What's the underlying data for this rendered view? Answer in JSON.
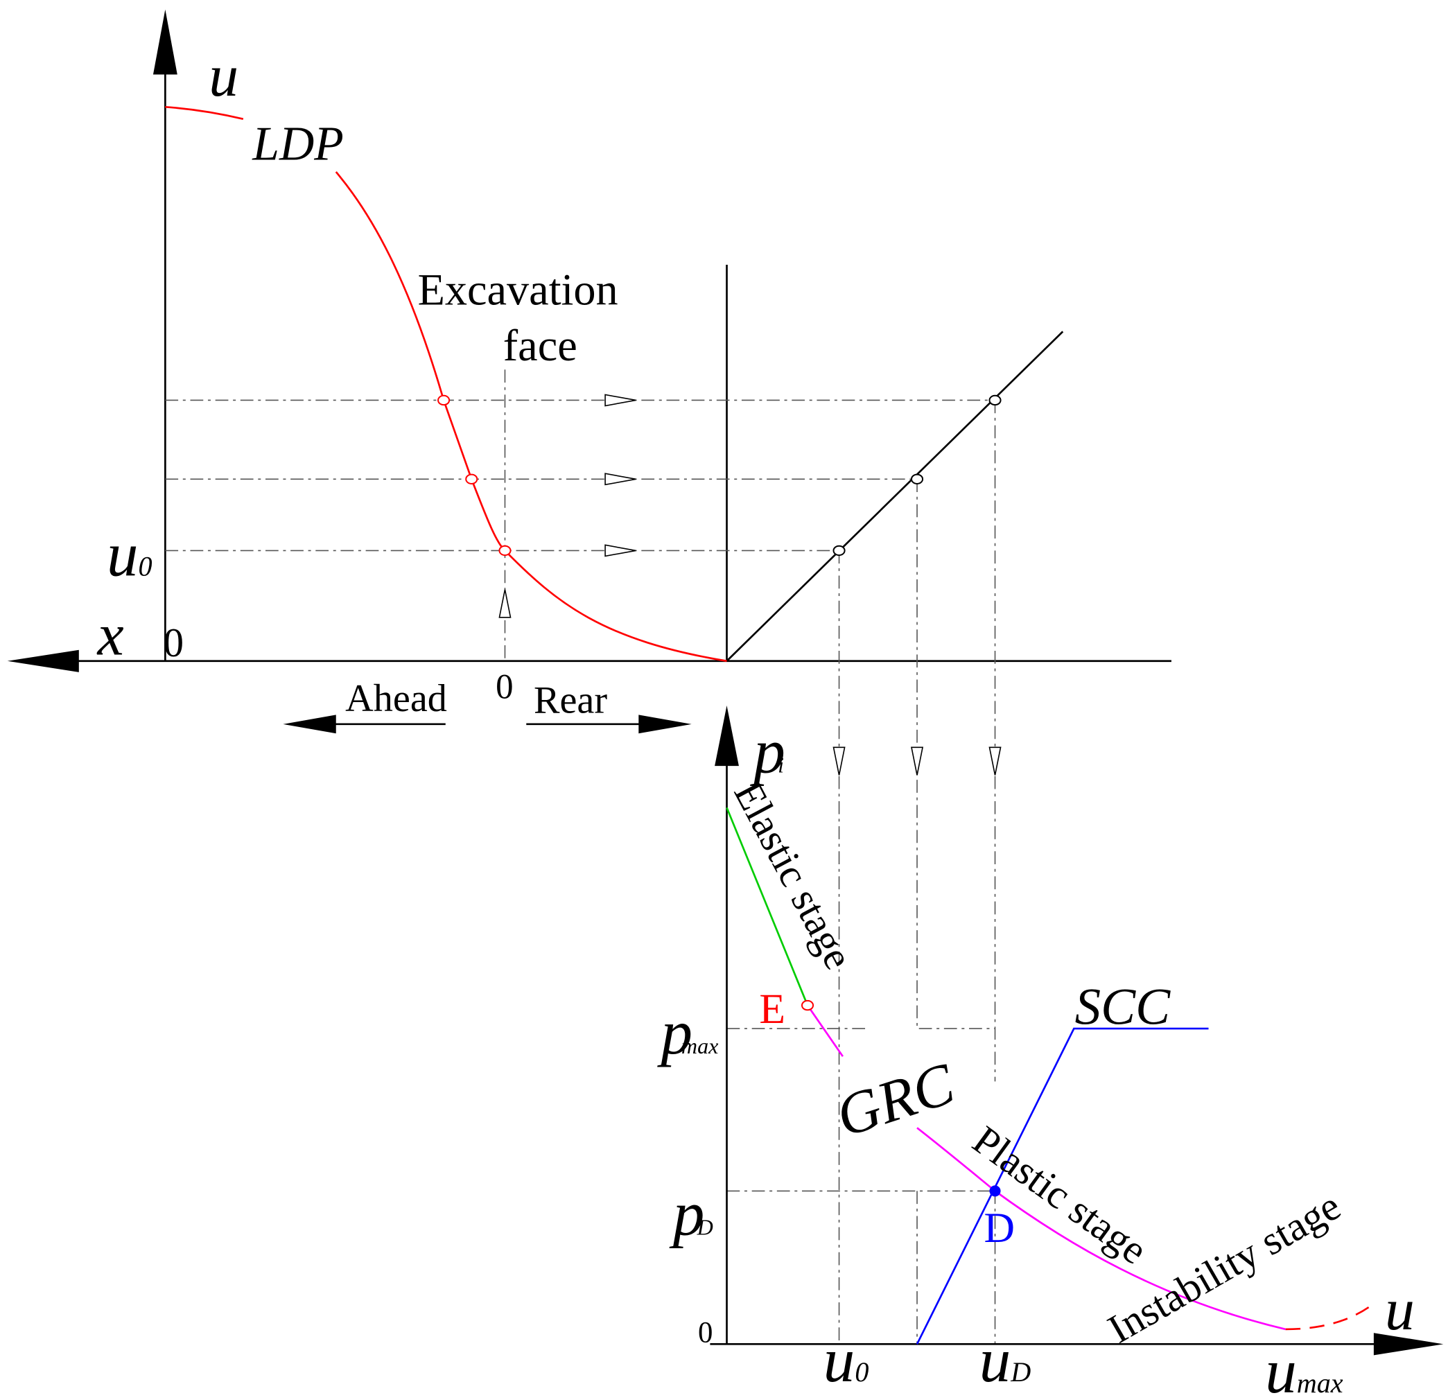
{
  "axes": {
    "top_u": "u",
    "x": "x",
    "origin_top": "0",
    "face_zero": "0",
    "pi": {
      "main": "p",
      "sub": "i"
    },
    "bottom_u": "u",
    "origin_bottom": "0"
  },
  "labels": {
    "ldp": "LDP",
    "excavation": "Excavation",
    "face": "face",
    "ahead": "Ahead",
    "rear": "Rear",
    "u0_left": {
      "main": "u",
      "sub": "0"
    },
    "elastic": "Elastic stage",
    "e_point": "E",
    "pmax": {
      "main": "p",
      "sub": "max"
    },
    "grc": "GRC",
    "scc": "SCC",
    "pd": {
      "main": "p",
      "sub": "D"
    },
    "d_point": "D",
    "plastic": "Plastic stage",
    "instability": "Instability stage",
    "u0_bottom": {
      "main": "u",
      "sub": "0"
    },
    "ud": {
      "main": "u",
      "sub": "D"
    },
    "umax": {
      "main": "u",
      "sub": "max"
    }
  }
}
